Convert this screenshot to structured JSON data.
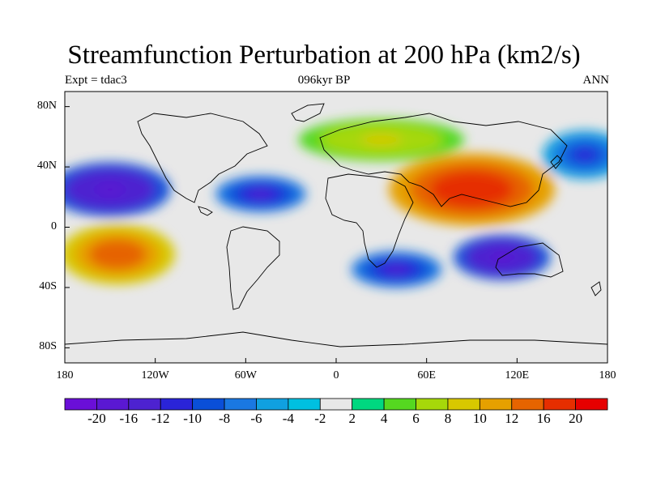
{
  "title": "Streamfunction Perturbation at 200 hPa (km2/s)",
  "left_subtitle": "Expt = tdac3",
  "center_subtitle": "096kyr BP",
  "right_subtitle": "ANN",
  "y_ticks": [
    "80N",
    "40N",
    "0",
    "40S",
    "80S"
  ],
  "x_ticks": [
    "180",
    "120W",
    "60W",
    "0",
    "60E",
    "120E",
    "180"
  ],
  "colorbar": {
    "levels": [
      "-20",
      "-16",
      "-12",
      "-10",
      "-8",
      "-6",
      "-4",
      "-2",
      "2",
      "4",
      "6",
      "8",
      "10",
      "12",
      "16",
      "20"
    ],
    "colors": [
      "#6a0fd8",
      "#5a18d2",
      "#4d22d0",
      "#2a24d8",
      "#0a4fd8",
      "#1a78e2",
      "#10a0e0",
      "#00c0e0",
      "#e8e8e8",
      "#00d880",
      "#55d820",
      "#a6d80a",
      "#d8c800",
      "#e6a000",
      "#e66400",
      "#e62e00",
      "#e60000"
    ]
  },
  "chart_data": {
    "type": "heatmap",
    "title": "Streamfunction Perturbation at 200 hPa (km2/s)",
    "experiment": "Expt = tdac3",
    "period": "096kyr BP",
    "season": "ANN",
    "xlim": [
      -180,
      180
    ],
    "ylim": [
      -90,
      90
    ],
    "x_ticks": [
      -180,
      -120,
      -60,
      0,
      60,
      120,
      180
    ],
    "y_ticks": [
      80,
      40,
      0,
      -40,
      -80
    ],
    "contour_levels": [
      -20,
      -16,
      -12,
      -10,
      -8,
      -6,
      -4,
      -2,
      2,
      4,
      6,
      8,
      10,
      12,
      16,
      20
    ],
    "features": [
      {
        "lon": 90,
        "lat": 25,
        "value": 20,
        "rx": 55,
        "ry": 24
      },
      {
        "lon": 30,
        "lat": 58,
        "value": 9,
        "rx": 55,
        "ry": 14
      },
      {
        "lon": -145,
        "lat": -18,
        "value": 16,
        "rx": 38,
        "ry": 20
      },
      {
        "lon": 110,
        "lat": -20,
        "value": -18,
        "rx": 32,
        "ry": 15
      },
      {
        "lon": 40,
        "lat": -28,
        "value": -12,
        "rx": 30,
        "ry": 12
      },
      {
        "lon": -150,
        "lat": 25,
        "value": -18,
        "rx": 40,
        "ry": 18
      },
      {
        "lon": -50,
        "lat": 22,
        "value": -12,
        "rx": 30,
        "ry": 12
      },
      {
        "lon": 165,
        "lat": 48,
        "value": -10,
        "rx": 28,
        "ry": 16
      }
    ]
  }
}
